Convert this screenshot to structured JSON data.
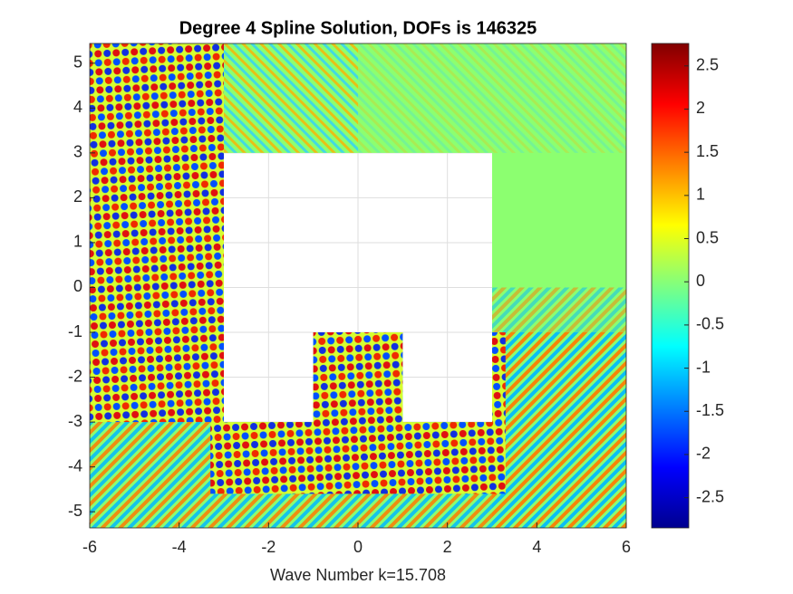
{
  "chart_data": {
    "type": "field",
    "title": "Degree 4 Spline Solution, DOFs is 146325",
    "x_label": "Wave Number k=15.708",
    "xlim": [
      -6,
      6
    ],
    "xticks": [
      -6,
      -4,
      -2,
      0,
      2,
      4,
      6
    ],
    "ylim": [
      -5.36,
      5.44
    ],
    "yticks": [
      -5,
      -4,
      -3,
      -2,
      -1,
      0,
      1,
      2,
      3,
      4,
      5
    ],
    "grid": true,
    "colormap": "jet",
    "clim": [
      -2.85,
      2.76
    ],
    "cticks": [
      -2.5,
      -2,
      -1.5,
      -1,
      -0.5,
      0,
      0.5,
      1,
      1.5,
      2,
      2.5
    ]
  }
}
